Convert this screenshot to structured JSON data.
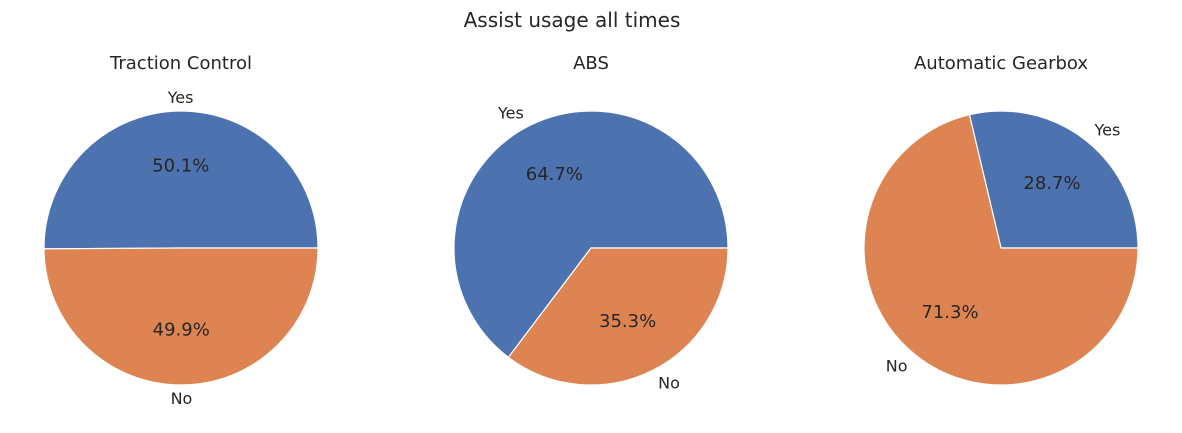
{
  "figure": {
    "suptitle": "Assist usage all times"
  },
  "chart_data": [
    {
      "type": "pie",
      "title": "Traction Control",
      "labels": [
        "Yes",
        "No"
      ],
      "values": [
        50.1,
        49.9
      ],
      "value_labels": [
        "50.1%",
        "49.9%"
      ],
      "colors": [
        "#4c72b0",
        "#dd8452"
      ]
    },
    {
      "type": "pie",
      "title": "ABS",
      "labels": [
        "Yes",
        "No"
      ],
      "values": [
        64.7,
        35.3
      ],
      "value_labels": [
        "64.7%",
        "35.3%"
      ],
      "colors": [
        "#4c72b0",
        "#dd8452"
      ]
    },
    {
      "type": "pie",
      "title": "Automatic Gearbox",
      "labels": [
        "Yes",
        "No"
      ],
      "values": [
        28.7,
        71.3
      ],
      "value_labels": [
        "28.7%",
        "71.3%"
      ],
      "colors": [
        "#4c72b0",
        "#dd8452"
      ]
    }
  ]
}
